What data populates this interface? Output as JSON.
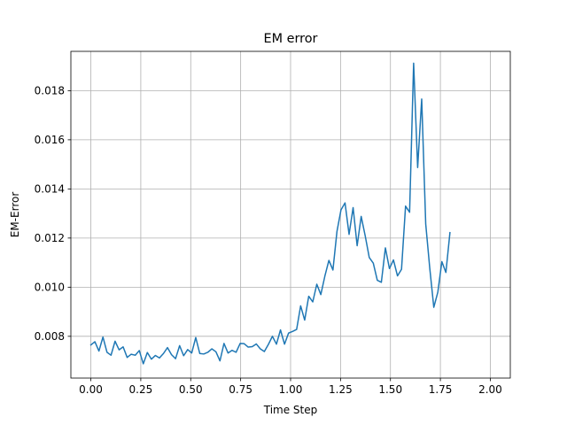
{
  "chart_data": {
    "type": "line",
    "title": "EM error",
    "xlabel": "Time Step",
    "ylabel": "EM-Error",
    "xlim": [
      -0.1,
      2.1
    ],
    "ylim": [
      0.0063,
      0.0196
    ],
    "xticks": [
      0.0,
      0.25,
      0.5,
      0.75,
      1.0,
      1.25,
      1.5,
      1.75,
      2.0
    ],
    "xtick_labels": [
      "0.00",
      "0.25",
      "0.50",
      "0.75",
      "1.00",
      "1.25",
      "1.50",
      "1.75",
      "2.00"
    ],
    "yticks": [
      0.008,
      0.01,
      0.012,
      0.014,
      0.016,
      0.018
    ],
    "ytick_labels": [
      "0.008",
      "0.010",
      "0.012",
      "0.014",
      "0.016",
      "0.018"
    ],
    "grid": true,
    "legend": "none",
    "line_color": "#1f77b4",
    "grid_color": "#b0b0b0",
    "series": [
      {
        "x_start": 0.0,
        "x_step": 0.0202,
        "values": [
          0.00765,
          0.00778,
          0.0074,
          0.00797,
          0.00735,
          0.00723,
          0.0078,
          0.00745,
          0.00757,
          0.00714,
          0.00727,
          0.00723,
          0.00742,
          0.00688,
          0.00734,
          0.00707,
          0.00722,
          0.00712,
          0.0073,
          0.00754,
          0.00725,
          0.00709,
          0.00762,
          0.00721,
          0.00746,
          0.00732,
          0.00795,
          0.0073,
          0.00728,
          0.00735,
          0.00749,
          0.00737,
          0.007,
          0.00771,
          0.00732,
          0.00743,
          0.00735,
          0.00771,
          0.0077,
          0.00756,
          0.00758,
          0.00769,
          0.00749,
          0.00738,
          0.00767,
          0.008,
          0.00768,
          0.00826,
          0.00768,
          0.00813,
          0.0082,
          0.00828,
          0.00924,
          0.00866,
          0.00963,
          0.0094,
          0.01012,
          0.0097,
          0.01045,
          0.01109,
          0.0107,
          0.01227,
          0.01315,
          0.01343,
          0.01215,
          0.01324,
          0.01169,
          0.01288,
          0.01209,
          0.01121,
          0.01098,
          0.01028,
          0.0102,
          0.0116,
          0.01076,
          0.01111,
          0.01046,
          0.01073,
          0.0133,
          0.01305,
          0.01912,
          0.01487,
          0.01766,
          0.01257,
          0.01077,
          0.00918,
          0.0098,
          0.01104,
          0.0106,
          0.01222
        ]
      }
    ]
  }
}
